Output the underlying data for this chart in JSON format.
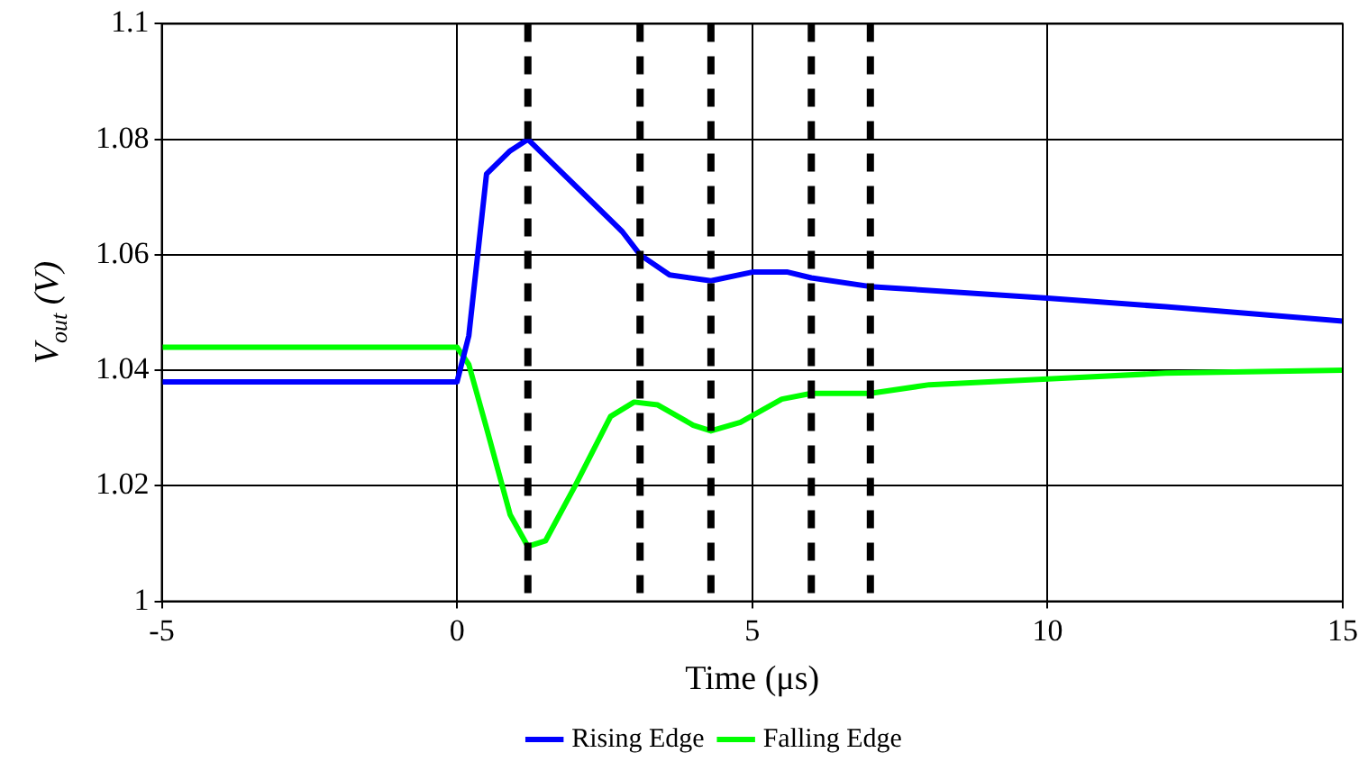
{
  "chart_data": {
    "type": "line",
    "xlabel": "Time (μs)",
    "ylabel": "V$_{out}$ (V)",
    "xlim": [
      -5,
      15
    ],
    "xticks": [
      -5,
      0,
      5,
      10,
      15
    ],
    "ylim": [
      1,
      1.1
    ],
    "yticks": [
      1,
      1.02,
      1.04,
      1.06,
      1.08,
      1.1
    ],
    "grid": true,
    "legend": "bottom",
    "line_style": "solid",
    "marker": "none",
    "series": [
      {
        "name": "Rising Edge",
        "color": "#0000ff",
        "x": [
          -5,
          -4.5,
          0,
          0.2,
          0.5,
          0.9,
          1.2,
          1.6,
          2.2,
          2.8,
          3.1,
          3.6,
          4.3,
          5,
          5.6,
          6,
          7,
          10,
          12,
          15
        ],
        "values": [
          1.038,
          1.038,
          1.038,
          1.046,
          1.074,
          1.078,
          1.08,
          1.076,
          1.07,
          1.064,
          1.06,
          1.0565,
          1.0555,
          1.057,
          1.057,
          1.056,
          1.0545,
          1.0525,
          1.051,
          1.0485
        ]
      },
      {
        "name": "Falling Edge",
        "color": "#00ff00",
        "x": [
          -5,
          0,
          0.2,
          0.5,
          0.9,
          1.2,
          1.5,
          2,
          2.6,
          3,
          3.4,
          4,
          4.3,
          4.8,
          5.5,
          6,
          7,
          8,
          10,
          12,
          15
        ],
        "values": [
          1.044,
          1.044,
          1.041,
          1.03,
          1.015,
          1.0095,
          1.0105,
          1.02,
          1.032,
          1.0345,
          1.034,
          1.0305,
          1.0295,
          1.031,
          1.035,
          1.036,
          1.036,
          1.0375,
          1.0385,
          1.0395,
          1.04
        ]
      }
    ],
    "ref_lines": [
      {
        "axis": "x",
        "value": 1.2,
        "color": "#000000",
        "line_style": "dashed"
      },
      {
        "axis": "x",
        "value": 3.1,
        "color": "#000000",
        "line_style": "dashed"
      },
      {
        "axis": "x",
        "value": 4.3,
        "color": "#000000",
        "line_style": "dashed"
      },
      {
        "axis": "x",
        "value": 6,
        "color": "#000000",
        "line_style": "dashed"
      },
      {
        "axis": "x",
        "value": 7,
        "color": "#000000",
        "line_style": "dashed"
      }
    ]
  }
}
